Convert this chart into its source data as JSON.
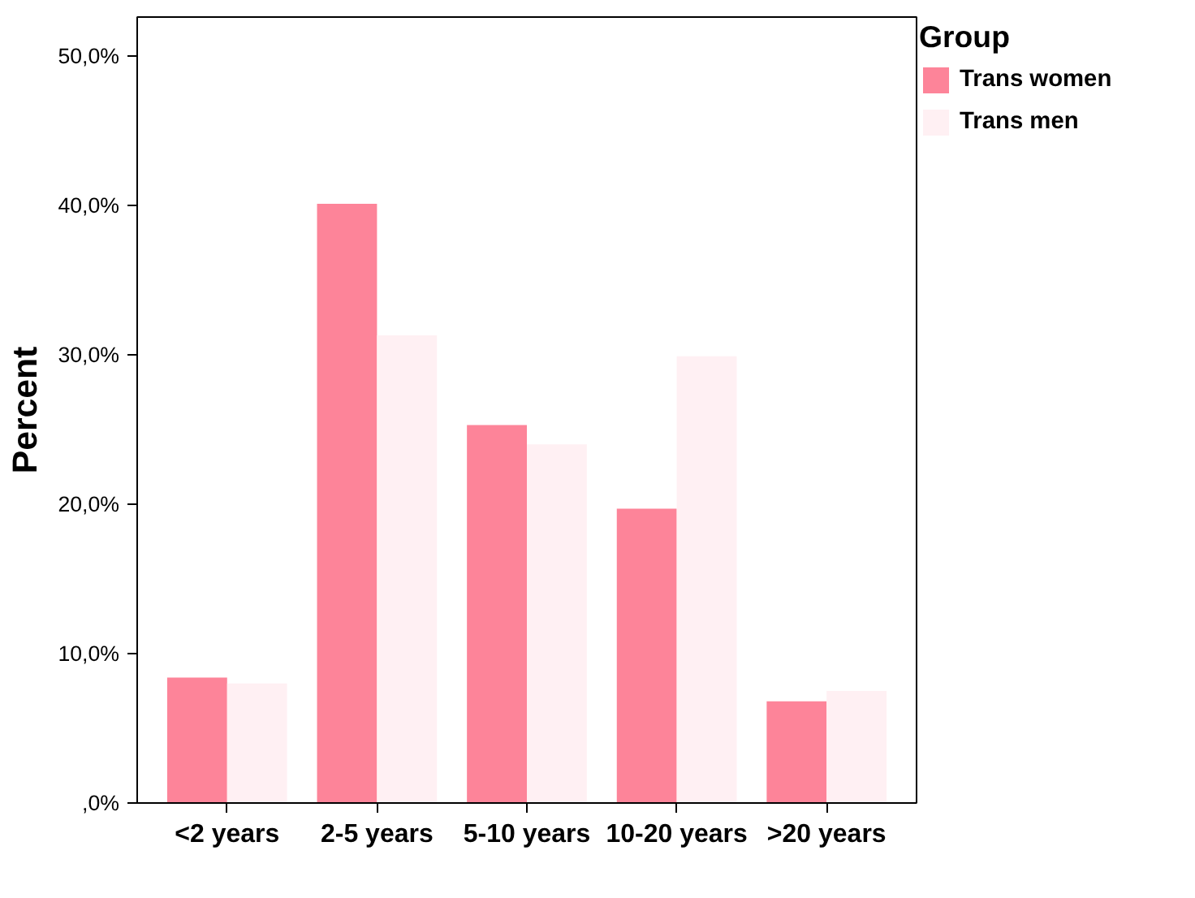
{
  "chart_data": {
    "type": "bar",
    "ylabel": "Percent",
    "legend_title": "Group",
    "categories": [
      "<2 years",
      "2-5 years",
      "5-10 years",
      "10-20 years",
      ">20 years"
    ],
    "series": [
      {
        "name": "Trans women",
        "color": "#fd8499",
        "values": [
          8.4,
          40.1,
          25.3,
          19.7,
          6.8
        ]
      },
      {
        "name": "Trans men",
        "color": "#fff0f3",
        "values": [
          8.0,
          31.3,
          24.0,
          29.9,
          7.5
        ]
      }
    ],
    "ylim": [
      0,
      52.6
    ],
    "yticks": [
      {
        "value": 0,
        "label": ",0%"
      },
      {
        "value": 10,
        "label": "10,0%"
      },
      {
        "value": 20,
        "label": "20,0%"
      },
      {
        "value": 30,
        "label": "30,0%"
      },
      {
        "value": 40,
        "label": "40,0%"
      },
      {
        "value": 50,
        "label": "50,0%"
      }
    ],
    "grid": false,
    "legend": "right"
  }
}
